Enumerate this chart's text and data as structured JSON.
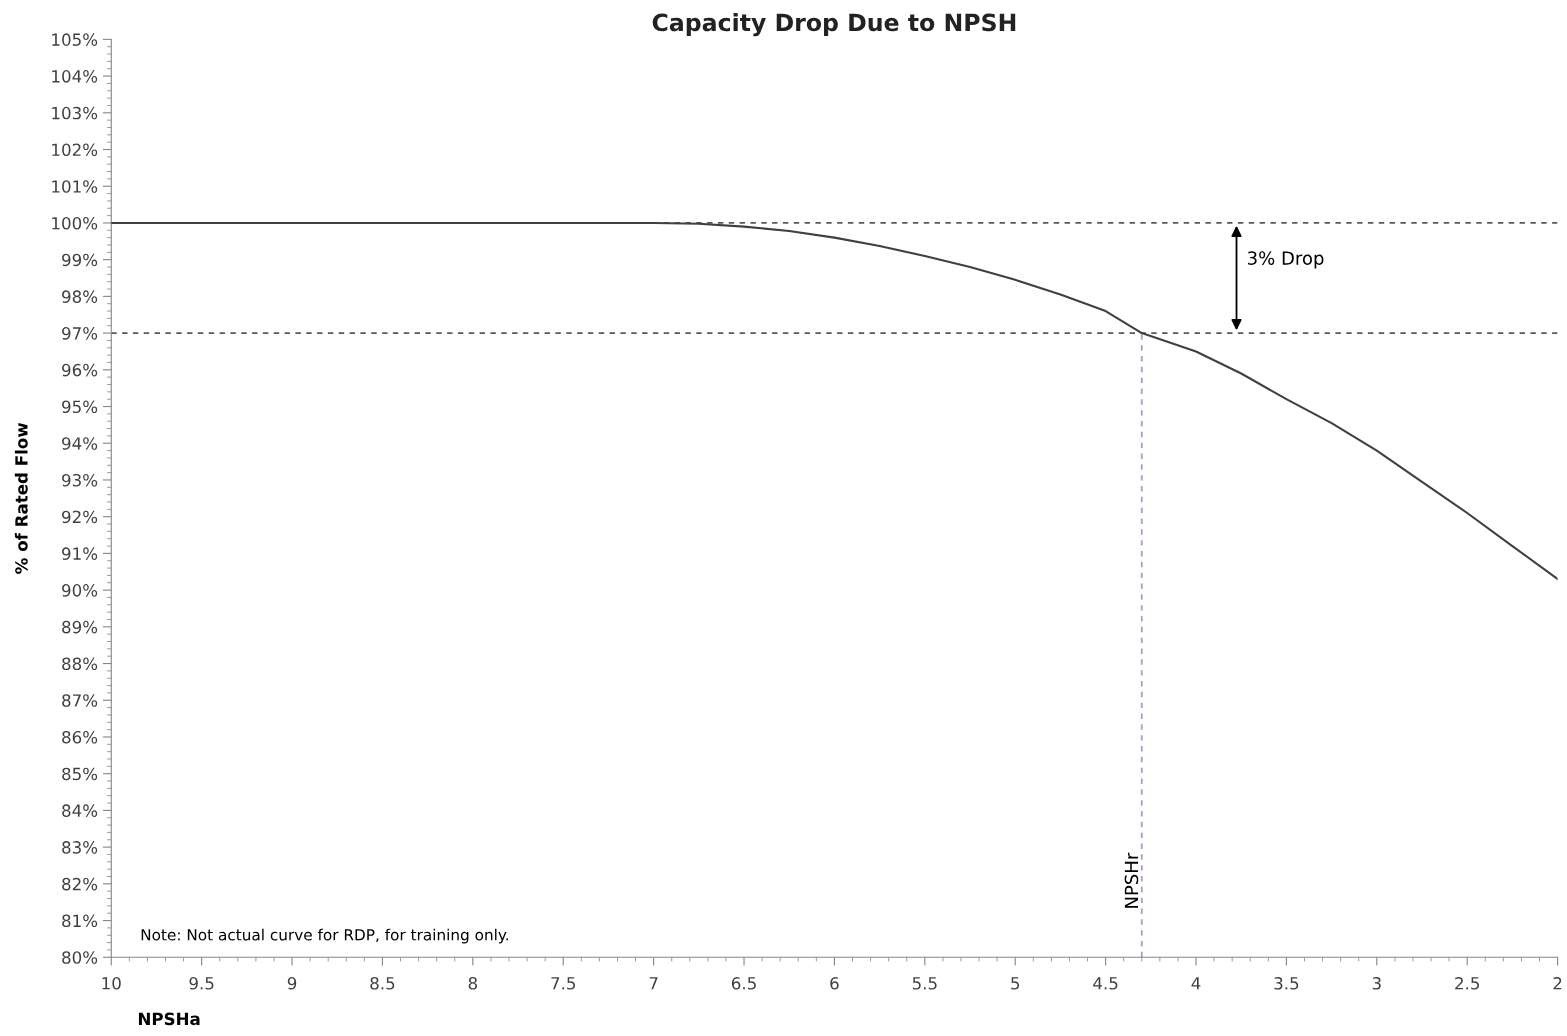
{
  "chart_data": {
    "type": "line",
    "title": "Capacity Drop Due to NPSH",
    "xlabel": "NPSHa",
    "ylabel": "% of Rated Flow",
    "x": [
      10,
      9,
      8,
      7,
      6.75,
      6.5,
      6.25,
      6,
      5.75,
      5.5,
      5.25,
      5,
      4.75,
      4.5,
      4.3,
      4,
      3.75,
      3.5,
      3.25,
      3,
      2.75,
      2.5,
      2.25,
      2
    ],
    "series": [
      {
        "color": "#404040",
        "values": [
          100,
          100,
          100,
          100,
          99.98,
          99.9,
          99.78,
          99.6,
          99.37,
          99.1,
          98.8,
          98.45,
          98.05,
          97.6,
          97.0,
          96.5,
          95.9,
          95.2,
          94.55,
          93.8,
          92.95,
          92.1,
          91.2,
          90.3
        ]
      }
    ],
    "xlim": [
      10,
      2
    ],
    "xticks": [
      10,
      9.5,
      9,
      8.5,
      8,
      7.5,
      7,
      6.5,
      6,
      5.5,
      5,
      4.5,
      4,
      3.5,
      3,
      2.5,
      2
    ],
    "ylim": [
      80,
      105
    ],
    "yticks": [
      {
        "value": 80,
        "label": "80%"
      },
      {
        "value": 81,
        "label": "81%"
      },
      {
        "value": 82,
        "label": "82%"
      },
      {
        "value": 83,
        "label": "83%"
      },
      {
        "value": 84,
        "label": "84%"
      },
      {
        "value": 85,
        "label": "85%"
      },
      {
        "value": 86,
        "label": "86%"
      },
      {
        "value": 87,
        "label": "87%"
      },
      {
        "value": 88,
        "label": "88%"
      },
      {
        "value": 89,
        "label": "89%"
      },
      {
        "value": 90,
        "label": "90%"
      },
      {
        "value": 91,
        "label": "91%"
      },
      {
        "value": 92,
        "label": "92%"
      },
      {
        "value": 93,
        "label": "93%"
      },
      {
        "value": 94,
        "label": "94%"
      },
      {
        "value": 95,
        "label": "95%"
      },
      {
        "value": 96,
        "label": "96%"
      },
      {
        "value": 97,
        "label": "97%"
      },
      {
        "value": 98,
        "label": "98%"
      },
      {
        "value": 99,
        "label": "99%"
      },
      {
        "value": 100,
        "label": "100%"
      },
      {
        "value": 101,
        "label": "101%"
      },
      {
        "value": 102,
        "label": "102%"
      },
      {
        "value": 103,
        "label": "103%"
      },
      {
        "value": 104,
        "label": "104%"
      },
      {
        "value": 105,
        "label": "105%"
      }
    ],
    "ref_lines": [
      {
        "axis": "y",
        "value": 100,
        "color": "#595959",
        "line_style": "dashed"
      },
      {
        "axis": "y",
        "value": 97,
        "color": "#595959",
        "line_style": "dashed"
      },
      {
        "axis": "x",
        "value": 4.3,
        "label": "NPSHr",
        "color": "#a99bd0",
        "line_style": "dashed"
      }
    ],
    "annotations": [
      "3% Drop",
      "Note: Not actual curve for RDP, for training only."
    ],
    "grid": false,
    "marker": "none",
    "line_style": "solid"
  }
}
